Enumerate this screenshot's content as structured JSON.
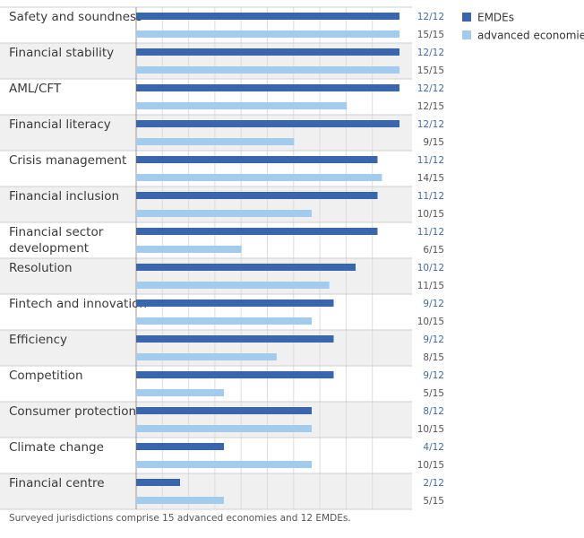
{
  "chart_data": {
    "type": "bar",
    "orientation": "horizontal",
    "categories": [
      [
        "Safety and soundness"
      ],
      [
        "Financial stability"
      ],
      [
        "AML/CFT"
      ],
      [
        "Financial literacy"
      ],
      [
        "Crisis management"
      ],
      [
        "Financial inclusion"
      ],
      [
        "Financial sector",
        "development"
      ],
      [
        "Resolution"
      ],
      [
        "Fintech and innovation"
      ],
      [
        "Efficiency"
      ],
      [
        "Competition"
      ],
      [
        "Consumer protection"
      ],
      [
        "Climate change"
      ],
      [
        "Financial centre"
      ]
    ],
    "series": [
      {
        "name": "EMDEs",
        "color": "#3a66ad",
        "values": [
          12,
          12,
          12,
          12,
          11,
          11,
          11,
          10,
          9,
          9,
          9,
          8,
          4,
          2
        ],
        "total": 12,
        "labels": [
          "12/12",
          "12/12",
          "12/12",
          "12/12",
          "11/12",
          "11/12",
          "11/12",
          "10/12",
          "9/12",
          "9/12",
          "9/12",
          "8/12",
          "4/12",
          "2/12"
        ]
      },
      {
        "name": "advanced economies",
        "color": "#a3cbee",
        "values": [
          15,
          15,
          12,
          9,
          14,
          10,
          6,
          11,
          10,
          8,
          5,
          10,
          10,
          5
        ],
        "total": 15,
        "labels": [
          "15/15",
          "15/15",
          "12/15",
          "9/15",
          "14/15",
          "10/15",
          "6/15",
          "11/15",
          "10/15",
          "8/15",
          "5/15",
          "10/15",
          "10/15",
          "5/15"
        ]
      }
    ],
    "value_scale": "share of surveyed jurisdictions",
    "xlim": [
      0,
      1
    ],
    "grid": true,
    "legend_position": "top-right",
    "shaded_rows": true
  },
  "footnote": "Surveyed jurisdictions comprise 15 advanced economies and 12 EMDEs."
}
